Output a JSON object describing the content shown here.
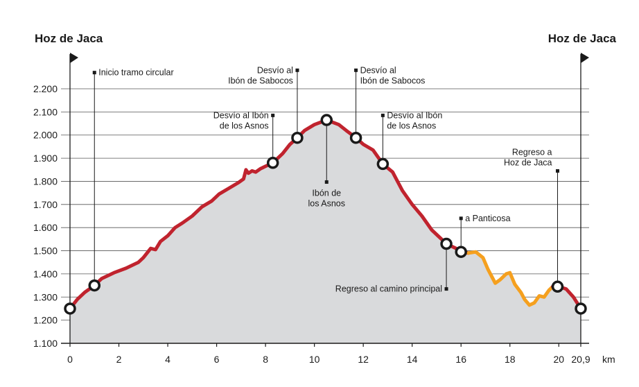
{
  "chart_data": {
    "type": "area",
    "title": "",
    "xlabel": "",
    "ylabel": "",
    "xunit": "km",
    "xlim": [
      0,
      20.9
    ],
    "ylim": [
      1100,
      2200
    ],
    "xticks": [
      {
        "value": 0,
        "label": "0"
      },
      {
        "value": 2,
        "label": "2"
      },
      {
        "value": 4,
        "label": "4"
      },
      {
        "value": 6,
        "label": "6"
      },
      {
        "value": 8,
        "label": "8"
      },
      {
        "value": 10,
        "label": "10"
      },
      {
        "value": 12,
        "label": "12"
      },
      {
        "value": 14,
        "label": "14"
      },
      {
        "value": 16,
        "label": "16"
      },
      {
        "value": 18,
        "label": "18"
      },
      {
        "value": 20,
        "label": "20"
      },
      {
        "value": 20.9,
        "label": "20,9"
      }
    ],
    "yticks": [
      {
        "value": 1100,
        "label": "1.100"
      },
      {
        "value": 1200,
        "label": "1.200"
      },
      {
        "value": 1300,
        "label": "1.300"
      },
      {
        "value": 1400,
        "label": "1.400"
      },
      {
        "value": 1500,
        "label": "1.500"
      },
      {
        "value": 1600,
        "label": "1.600"
      },
      {
        "value": 1700,
        "label": "1.700"
      },
      {
        "value": 1800,
        "label": "1.800"
      },
      {
        "value": 1900,
        "label": "1.900"
      },
      {
        "value": 2000,
        "label": "2.000"
      },
      {
        "value": 2100,
        "label": "2.100"
      },
      {
        "value": 2200,
        "label": "2.200"
      }
    ],
    "endpoints": {
      "start": {
        "label": "Hoz de Jaca",
        "x": 0
      },
      "end": {
        "label": "Hoz de Jaca",
        "x": 20.9
      }
    },
    "series": [
      {
        "name": "main-route",
        "color": "#c0232e",
        "x": [
          0,
          0.3,
          0.6,
          1.0,
          1.3,
          1.8,
          2.3,
          2.8,
          3.0,
          3.3,
          3.5,
          3.7,
          4.0,
          4.3,
          4.6,
          5.0,
          5.4,
          5.8,
          6.1,
          6.5,
          6.9,
          7.1,
          7.2,
          7.3,
          7.45,
          7.6,
          7.8,
          8.0,
          8.3,
          8.7,
          9.0,
          9.3,
          9.6,
          10.0,
          10.5,
          11.0,
          11.3,
          11.7,
          12.0,
          12.4,
          12.8,
          13.2,
          13.6,
          14.0,
          14.4,
          14.8,
          15.1,
          15.4,
          15.8,
          16.1,
          16.3
        ],
        "y": [
          1250,
          1290,
          1320,
          1350,
          1380,
          1405,
          1425,
          1450,
          1470,
          1510,
          1505,
          1540,
          1565,
          1600,
          1620,
          1650,
          1690,
          1715,
          1745,
          1770,
          1795,
          1810,
          1850,
          1835,
          1845,
          1840,
          1855,
          1865,
          1880,
          1920,
          1960,
          1988,
          2020,
          2045,
          2065,
          2045,
          2020,
          1988,
          1960,
          1935,
          1875,
          1840,
          1760,
          1700,
          1650,
          1590,
          1560,
          1530,
          1510,
          1495,
          1490
        ]
      },
      {
        "name": "panticosa-loop",
        "color": "#f5a01f",
        "x": [
          16.3,
          16.6,
          16.9,
          17.1,
          17.4,
          17.6,
          17.85,
          18.0,
          18.2,
          18.45,
          18.6,
          18.8,
          19.0,
          19.2,
          19.4,
          19.6,
          19.75
        ],
        "y": [
          1490,
          1495,
          1470,
          1420,
          1360,
          1375,
          1400,
          1405,
          1355,
          1320,
          1290,
          1265,
          1275,
          1305,
          1300,
          1330,
          1345
        ]
      },
      {
        "name": "return-route",
        "color": "#c0232e",
        "x": [
          19.75,
          20.0,
          20.3,
          20.6,
          20.9
        ],
        "y": [
          1345,
          1345,
          1335,
          1300,
          1250
        ]
      }
    ],
    "waypoints": [
      {
        "x": 0,
        "y": 1250,
        "name": "start"
      },
      {
        "x": 1.0,
        "y": 1350,
        "name": "inicio-tramo-circular"
      },
      {
        "x": 8.3,
        "y": 1880,
        "name": "desvio-ibon-asnos-1"
      },
      {
        "x": 9.3,
        "y": 1988,
        "name": "desvio-ibon-sabocos-1"
      },
      {
        "x": 10.5,
        "y": 2065,
        "name": "ibon-asnos"
      },
      {
        "x": 11.7,
        "y": 1988,
        "name": "desvio-ibon-sabocos-2"
      },
      {
        "x": 12.8,
        "y": 1875,
        "name": "desvio-ibon-asnos-2"
      },
      {
        "x": 15.4,
        "y": 1530,
        "name": "regreso-camino-principal"
      },
      {
        "x": 16.0,
        "y": 1495,
        "name": "a-panticosa"
      },
      {
        "x": 19.95,
        "y": 1345,
        "name": "regreso-hoz-de-jaca"
      },
      {
        "x": 20.9,
        "y": 1250,
        "name": "end"
      }
    ],
    "annotations": [
      {
        "name": "inicio-tramo-circular",
        "lines": [
          "Inicio tramo circular"
        ],
        "x": 1.0,
        "marker_y": 2270,
        "anchor": "start"
      },
      {
        "name": "desvio-ibon-sabocos-1",
        "lines": [
          "Desvío al",
          "Ibón de Sabocos"
        ],
        "x": 9.3,
        "marker_y": 2280,
        "anchor": "end"
      },
      {
        "name": "desvio-ibon-sabocos-2",
        "lines": [
          "Desvío al",
          "Ibón de Sabocos"
        ],
        "x": 11.7,
        "marker_y": 2280,
        "anchor": "start"
      },
      {
        "name": "desvio-ibon-asnos-1",
        "lines": [
          "Desvío al Ibón",
          "de los Asnos"
        ],
        "x": 8.3,
        "marker_y": 2085,
        "anchor": "end"
      },
      {
        "name": "desvio-ibon-asnos-2",
        "lines": [
          "Desvío al Ibón",
          "de los Asnos"
        ],
        "x": 12.8,
        "marker_y": 2085,
        "anchor": "start"
      },
      {
        "name": "ibon-asnos",
        "lines": [
          "Ibón de",
          "los Asnos"
        ],
        "x": 10.5,
        "marker_y": 1797,
        "anchor": "below"
      },
      {
        "name": "a-panticosa",
        "lines": [
          "a Panticosa"
        ],
        "x": 16.0,
        "marker_y": 1640,
        "anchor": "start"
      },
      {
        "name": "regreso-camino-principal",
        "lines": [
          "Regreso al camino principal"
        ],
        "x": 15.4,
        "marker_y": 1335,
        "anchor": "end"
      },
      {
        "name": "regreso-hoz-de-jaca",
        "lines": [
          "Regreso a",
          "Hoz de Jaca"
        ],
        "x": 19.95,
        "marker_y": 1845,
        "anchor": "end-above"
      }
    ],
    "colors": {
      "fill": "#d9dadc",
      "grid": "#555555",
      "marker_stroke": "#1a1a1a",
      "marker_fill": "#ffffff",
      "text": "#1a1a1a"
    }
  }
}
